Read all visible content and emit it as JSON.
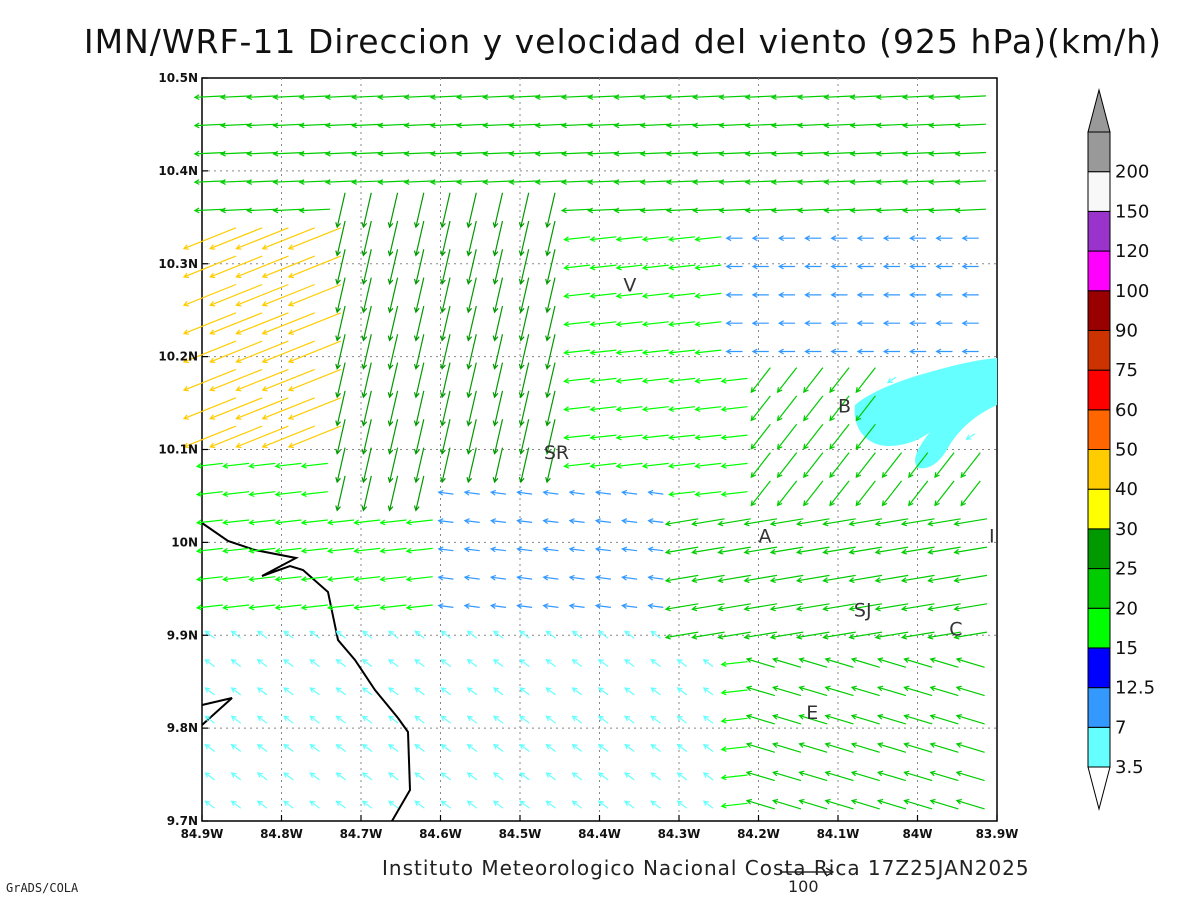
{
  "title": "IMN/WRF-11 Direccion y velocidad del viento (925 hPa)(km/h)",
  "footer": "Instituto Meteorologico Nacional Costa Rica 17Z25JAN2025",
  "credit": "GrADS/COLA",
  "reference_vector": {
    "value": "100"
  },
  "map": {
    "lon_range": [
      -84.9,
      -83.9
    ],
    "lat_range": [
      9.7,
      10.5
    ],
    "grid": "dotted",
    "x_ticks": [
      "84.9W",
      "84.8W",
      "84.7W",
      "84.6W",
      "84.5W",
      "84.4W",
      "84.3W",
      "84.2W",
      "84.1W",
      "84W",
      "83.9W"
    ],
    "y_ticks": [
      "9.7N",
      "9.8N",
      "9.9N",
      "10N",
      "10.1N",
      "10.2N",
      "10.3N",
      "10.4N",
      "10.5N"
    ],
    "places": [
      {
        "label": "V",
        "lon": -84.37,
        "lat": 10.27
      },
      {
        "label": "SR",
        "lon": -84.47,
        "lat": 10.09
      },
      {
        "label": "B",
        "lon": -84.1,
        "lat": 10.14
      },
      {
        "label": "A",
        "lon": -84.2,
        "lat": 10.0
      },
      {
        "label": "I",
        "lon": -83.91,
        "lat": 10.0
      },
      {
        "label": "SJ",
        "lon": -84.08,
        "lat": 9.92
      },
      {
        "label": "C",
        "lon": -83.96,
        "lat": 9.9
      },
      {
        "label": "E",
        "lon": -84.14,
        "lat": 9.81
      }
    ]
  },
  "colorbar": {
    "labels": [
      "3.5",
      "7",
      "12.5",
      "15",
      "20",
      "25",
      "30",
      "40",
      "50",
      "60",
      "75",
      "90",
      "100",
      "120",
      "150",
      "200"
    ],
    "colors": [
      "#66ffff",
      "#3399ff",
      "#0000ff",
      "#00ff00",
      "#00cc00",
      "#009900",
      "#ffff00",
      "#ffcc00",
      "#ff6600",
      "#ff0000",
      "#cc3300",
      "#990000",
      "#ff00ff",
      "#9933cc",
      "#f8f8f8",
      "#999999"
    ]
  }
}
